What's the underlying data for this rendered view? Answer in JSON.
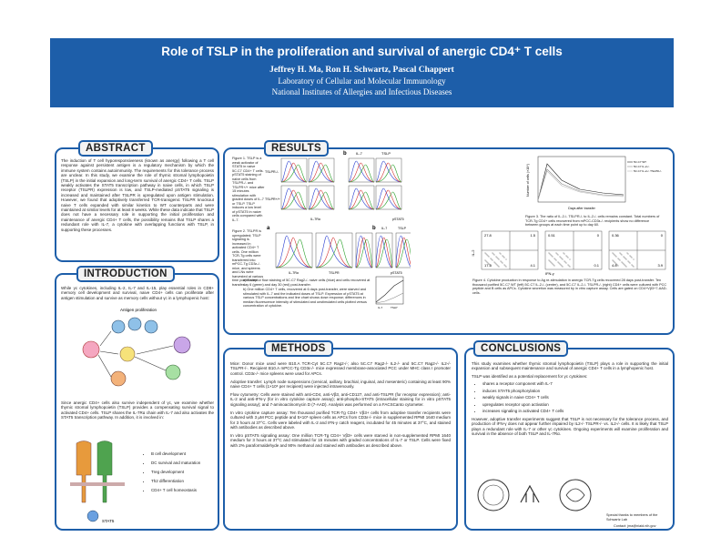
{
  "header": {
    "title": "Role of TSLP in the proliferation and survival of anergic CD4⁺ T cells",
    "authors": "Jeffrey H. Ma, Ron H. Schwartz, Pascal Chappert",
    "lab": "Laboratory of Cellular and Molecular Immunology",
    "institute": "National Institutes of Allergies and Infectious Diseases"
  },
  "abstract": {
    "heading": "ABSTRACT",
    "text": "The induction of T cell hyporesponsiveness (known as anergy) following a T cell response against persistent antigen is a regulatory mechanism by which the immune system contains autoimmunity. The requirements for this tolerance process are unclear. In this study, we examine the role of thymic stromal lymphopoietin (TSLP) in the initial expansion and long-term survival of anergic CD4+ T cells. TSLP weakly activates the STAT5 transcription pathway in naive cells, in which TSLP receptor (TSLPR) expression is low, and TSLP-mediated pSTAT5 signaling is increased and maintained after TSLPR is upregulated upon antigen stimulation. However, we found that adoptively transferred TCR-transgenic TSLPR knockout naive T cells expanded with similar kinetics to WT counterparts and were maintained at similar levels for at least 8 weeks. While these data indicate that TSLP does not have a necessary role in supporting the initial proliferation and maintenance of anergic CD4+ T cells, the possibility remains that TSLP shares a redundant role with IL-7, a cytokine with overlapping functions with TSLP, in supporting these processes."
  },
  "introduction": {
    "heading": "INTRODUCTION",
    "paragraph1": "While γc cytokines, including IL-2, IL-7 and IL-15, play essential roles in CD8+ memory cell development and survival, naive CD4+ cells can proliferate after antigen stimulation and survive as memory cells without γc in a lymphopenic host:",
    "diagram_label": "Antigen proliferation",
    "paragraph2": "Since anergic CD4+ cells also survive independent of γc, we examine whether thymic stromal lymphopoietin (TSLP) provides a compensating survival signal to activated CD4+ cells. TSLP shares the IL-7Rα chain with IL-7 and also activates the STAT5 transcription pathway. In addition, it is involved in:",
    "list": [
      "B cell development",
      "DC survival and maturation",
      "Treg development",
      "Th2 differentiation",
      "CD4+ T cell homeostasis"
    ],
    "receptor_label": "STAT5"
  },
  "results": {
    "heading": "RESULTS",
    "fig1": {
      "caption": "Figure 1. TSLP is a weak activator of STAT5 in naive 5C.C7 CD4+ T cells. pSTAT5 staining of naive cells from TSLPR-/- and TSLPR+/+ mice after 15 minutes stimulation with graded doses of IL-7 or TSLP. TSLP induces a low level of pSTAT5 in naive cells compared with IL-7.",
      "panel_a": "a",
      "panel_b": "b",
      "col_il7": "IL-7",
      "col_tslp": "TSLP",
      "row1": "TSLPR-/-",
      "row2": "TSLPR+/+",
      "xlabel_a": "IL-7Rα",
      "xlabel_b": "pSTAT5"
    },
    "fig2": {
      "caption": "Figure 2. TSLPR is upregulated; TSLP signaling is increased in activated CD4+ T cells. One million TCR-Tg cells were transferred into mPCC-Tg CD3ε-/- mice, and spleens and LNs were harvested at various time points after transfer.",
      "panel_a": "a",
      "panel_b": "b",
      "col_il7": "IL-7",
      "col_tslp": "TSLP",
      "xlabel_1": "IL-7Rα",
      "xlabel_2": "TSLPR",
      "xlabel_3": "pSTAT5",
      "note_a": "a)   Receptor flow staining of 5C.C7 Rag2-/- naive cells (blue) and cells recovered at day 6 (green) and day 30 (red) post-transfer.",
      "note_b": "b)   One million CD4+ T cells, recovered at 6 days post-transfer, were starved and stimulated with IL-7 and the indicated doses of TSLP. Expression of pSTAT5 at various TSLP concentrations and line chart shows dose response; differences in median fluorescence intensity of stimulated and unstimulated cells plotted versus concentration of cytokine.",
      "legend_il7": "IL-7",
      "legend_tslp": "TSLP"
    },
    "fig3": {
      "ylabel": "Number of cells (×10⁴)",
      "xlabel": "Days after transfer",
      "legend": [
        "5C.C7 WT",
        "5C.C7 IL-2-/-",
        "5C.C7 IL-2-/- TSLPR-/-"
      ],
      "caption": "Figure 3. The ratio of IL-2-/- TSLPR-/- to IL-2-/- cells remains constant. Total numbers of TCR-Tg CD4+ cells recovered from mPCC-CD3ε-/- recipients show no difference between groups at each time point up to day 60."
    },
    "fig4": {
      "ylabel": "IL-2",
      "xlabel": "IFN-γ",
      "panels": [
        [
          "27.8",
          "1.5",
          "17.3",
          "4.1"
        ],
        [
          "0.51",
          "0",
          "",
          "0.1"
        ],
        [
          "0.36",
          "0",
          "4.8",
          "3.9"
        ]
      ],
      "caption": "Figure 4. Cytokine production in response to Ag re-stimulation in anergic TCR-Tg cells recovered 28 days post-transfer. Ten thousand purified 5C.C7 WT (left) 5C.C7 IL-2-/- (center), and 5C.C7 IL-2-/- TSLPR-/- (right) CD4+ cells were cultured with PCC peptide and B cells as APCs. Cytokine secretion was measured by in vitro capture assay. Cells are gated on CD4+Vβ3+7-AAD- cells."
    }
  },
  "methods": {
    "heading": "METHODS",
    "paragraphs": [
      "Mice: Donor mice used were B10.A TCR-Cyt 5C.C7 Rag2-/-; also 5C.C7 Rag2-/- IL2-/- and 5C.C7 Rag2-/- IL2-/- TSLPR-/-. Recipient B10.A mPCC-Tg CD3ε-/- mice expressed membrane-associated PCC under MHC class I promoter control. CD3ε-/- mice spleens were used for APCs.",
      "Adoptive transfer: Lymph node suspensions (cervical, axillary, brachial, inguinal, and mesenteric) containing at least 90% naive CD4+ T cells (1×10⁶ per recipient) were injected intravenously.",
      "Flow cytometry: Cells were stained with anti-CD4, anti-Vβ3, anti-CD127, and anti-TSLPR (for receptor expression); anti-IL-2 and anti-IFN-γ (for in vitro cytokine capture assay); anti-phospho-STAT5 (intracellular staining for in vitro pSTAT5 signaling assay); and 7-aminoactinomycin D (7-AAD). Analysis was performed on a FACSCanto cytometer.",
      "In vitro cytokine capture assay: Ten thousand purified TCR-Tg CD4+ Vβ3+ cells from adoptive transfer recipients were cultured with 3 µM PCC peptide and 5×10⁵ spleen cells as APCs from CD3ε-/- mice in supplemented RPMI 1640 medium for 3 hours at 37°C. Cells were labeled with IL-2 and IFN-γ catch reagent, incubated for 45 minutes at 37°C, and stained with antibodies as described above.",
      "In vitro pSTAT5 signaling assay: One million TCR-Tg CD4+ Vβ3+ cells were starved in non-supplemented RPMI 1640 medium for 3 hours at 37°C and stimulated for 15 minutes with graded concentrations of IL-7 or TSLP. Cells were fixed with 2% paraformaldehyde and 90% methanol and stained with antibodies as described above."
    ]
  },
  "conclusions": {
    "heading": "CONCLUSIONS",
    "paragraph1": "This study examines whether thymic stromal lymphopoietin (TSLP) plays a role in supporting the initial expansion and subsequent maintenance and survival of anergic CD4+ T cells in a lymphopenic host.",
    "paragraph2": "TSLP was identified as a potential replacement for γc cytokines:",
    "list": [
      "shares a receptor component with IL-7",
      "induces STAT5 phosphorylation",
      "weakly signals in naive CD4+ T cells",
      "upregulates receptor upon activation",
      "increases signaling in activated CD4+ T cells"
    ],
    "paragraph3": "However, adoptive transfer experiments suggest that TSLP is not necessary for the tolerance process, and production of IFN-γ does not appear further impaired by IL2-/- TSLPR-/- vs. IL2-/- cells. It is likely that TSLP plays a redundant role with IL-7 or other γc cytokines. Ongoing experiments will examine proliferation and survival in the absence of both TSLP and IL-7Rα.",
    "thanks": "Special thanks to members of the Schwartz Lab",
    "contact": "Contact: jma@niaid.nih.gov"
  }
}
